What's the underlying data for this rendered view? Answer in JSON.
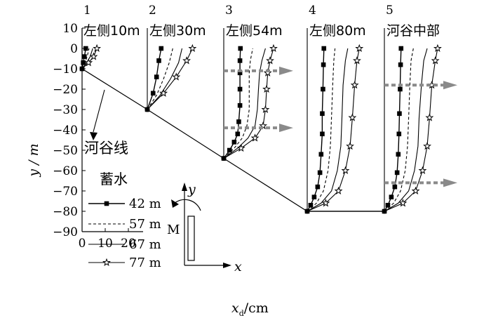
{
  "chart_data": {
    "type": "line",
    "ylabel": "y / m",
    "xlabel_main": "x",
    "xlabel_sub": "d",
    "xlabel_unit": "/cm",
    "ylim": [
      -90,
      10
    ],
    "yticks": [
      10,
      0,
      -10,
      -20,
      -30,
      -40,
      -50,
      -60,
      -70,
      -80,
      -90
    ],
    "xticks": [
      0,
      10,
      20
    ],
    "river_valley_label": "河谷线",
    "legend_title": "蓄水",
    "legend": [
      {
        "name": "42 m",
        "style": "solid",
        "marker": "square"
      },
      {
        "name": "57 m",
        "style": "dashed",
        "marker": "none"
      },
      {
        "name": "67 m",
        "style": "solid",
        "marker": "none"
      },
      {
        "name": "77 m",
        "style": "solid",
        "marker": "star"
      }
    ],
    "axis_inset": {
      "y": "y",
      "x": "x",
      "moment": "M"
    },
    "panels": [
      {
        "num": "1",
        "title": "左侧10m",
        "base_y": -10,
        "series": [
          {
            "name": "42 m",
            "points": [
              [
                0,
                -10
              ],
              [
                0.5,
                -7
              ],
              [
                1,
                -4
              ],
              [
                1.6,
                0
              ]
            ]
          },
          {
            "name": "57 m",
            "points": [
              [
                0,
                -10
              ],
              [
                1.2,
                -7
              ],
              [
                2.2,
                -4
              ],
              [
                3,
                0
              ]
            ]
          },
          {
            "name": "67 m",
            "points": [
              [
                0,
                -10
              ],
              [
                2,
                -7
              ],
              [
                3.5,
                -4
              ],
              [
                4.6,
                0
              ]
            ]
          },
          {
            "name": "77 m",
            "points": [
              [
                0,
                -10
              ],
              [
                2.8,
                -7
              ],
              [
                5,
                -4
              ],
              [
                6.4,
                0
              ]
            ]
          }
        ]
      },
      {
        "num": "2",
        "title": "左侧30m",
        "base_y": -30,
        "series": [
          {
            "name": "42 m",
            "points": [
              [
                0,
                -30
              ],
              [
                2.5,
                -22
              ],
              [
                4,
                -14
              ],
              [
                5,
                -6
              ],
              [
                6,
                0
              ]
            ]
          },
          {
            "name": "57 m",
            "points": [
              [
                0,
                -30
              ],
              [
                4,
                -23
              ],
              [
                7,
                -15
              ],
              [
                9.5,
                -7
              ],
              [
                11,
                0
              ]
            ]
          },
          {
            "name": "67 m",
            "points": [
              [
                0,
                -30
              ],
              [
                5.5,
                -23
              ],
              [
                10,
                -15
              ],
              [
                13.5,
                -7
              ],
              [
                15,
                0
              ]
            ]
          },
          {
            "name": "77 m",
            "points": [
              [
                0,
                -30
              ],
              [
                7,
                -22
              ],
              [
                12.5,
                -14
              ],
              [
                17,
                -6
              ],
              [
                19.5,
                0
              ]
            ]
          }
        ]
      },
      {
        "num": "3",
        "title": "左侧54m",
        "base_y": -54,
        "series": [
          {
            "name": "42 m",
            "points": [
              [
                0,
                -54
              ],
              [
                2.5,
                -50
              ],
              [
                4.5,
                -46
              ],
              [
                6,
                -42
              ],
              [
                6.5,
                -36
              ],
              [
                7,
                -28
              ],
              [
                7,
                -20
              ],
              [
                7,
                -12
              ],
              [
                7,
                -6
              ],
              [
                7.2,
                0
              ]
            ]
          },
          {
            "name": "57 m",
            "points": [
              [
                0,
                -54
              ],
              [
                4.5,
                -49
              ],
              [
                8,
                -44
              ],
              [
                10,
                -38
              ],
              [
                11,
                -30
              ],
              [
                11,
                -20
              ],
              [
                11,
                -12
              ],
              [
                11.5,
                -6
              ],
              [
                12.5,
                0
              ]
            ]
          },
          {
            "name": "67 m",
            "points": [
              [
                0,
                -54
              ],
              [
                6,
                -49
              ],
              [
                10.5,
                -44
              ],
              [
                13.5,
                -38
              ],
              [
                14.5,
                -30
              ],
              [
                15,
                -20
              ],
              [
                15.5,
                -12
              ],
              [
                16.5,
                -6
              ],
              [
                18,
                0
              ]
            ]
          },
          {
            "name": "77 m",
            "points": [
              [
                0,
                -54
              ],
              [
                7.5,
                -49
              ],
              [
                13.5,
                -44
              ],
              [
                17,
                -38
              ],
              [
                18,
                -30
              ],
              [
                18.5,
                -20
              ],
              [
                19,
                -12
              ],
              [
                20,
                -6
              ],
              [
                21.5,
                0
              ]
            ]
          }
        ]
      },
      {
        "num": "4",
        "title": "左侧80m",
        "base_y": -80,
        "series": [
          {
            "name": "42 m",
            "points": [
              [
                0,
                -80
              ],
              [
                1.5,
                -77
              ],
              [
                3,
                -73
              ],
              [
                4.5,
                -68
              ],
              [
                5.5,
                -61
              ],
              [
                6,
                -52
              ],
              [
                6.5,
                -42
              ],
              [
                6.5,
                -32
              ],
              [
                6.8,
                -20
              ],
              [
                7,
                -8
              ],
              [
                7.2,
                0
              ]
            ]
          },
          {
            "name": "57 m",
            "points": [
              [
                0,
                -80
              ],
              [
                4,
                -76
              ],
              [
                7,
                -70
              ],
              [
                9,
                -60
              ],
              [
                10,
                -48
              ],
              [
                10.5,
                -34
              ],
              [
                11,
                -18
              ],
              [
                11.5,
                -6
              ],
              [
                12,
                0
              ]
            ]
          },
          {
            "name": "67 m",
            "points": [
              [
                0,
                -80
              ],
              [
                6,
                -76
              ],
              [
                10.5,
                -70
              ],
              [
                13,
                -60
              ],
              [
                14.5,
                -48
              ],
              [
                15,
                -34
              ],
              [
                15.5,
                -18
              ],
              [
                16.5,
                -6
              ],
              [
                17.5,
                0
              ]
            ]
          },
          {
            "name": "77 m",
            "points": [
              [
                0,
                -80
              ],
              [
                8,
                -76
              ],
              [
                13.5,
                -70
              ],
              [
                16.5,
                -60
              ],
              [
                18.5,
                -48
              ],
              [
                19.5,
                -34
              ],
              [
                20.5,
                -18
              ],
              [
                21.5,
                -6
              ],
              [
                22.5,
                0
              ]
            ]
          }
        ]
      },
      {
        "num": "5",
        "title": "河谷中部",
        "base_y": -80,
        "series": [
          {
            "name": "42 m",
            "points": [
              [
                0,
                -80
              ],
              [
                1.5,
                -77
              ],
              [
                3,
                -73
              ],
              [
                4.5,
                -68
              ],
              [
                5.5,
                -61
              ],
              [
                6,
                -52
              ],
              [
                6.3,
                -42
              ],
              [
                6.5,
                -32
              ],
              [
                6.8,
                -20
              ],
              [
                7,
                -8
              ],
              [
                7.2,
                0
              ]
            ]
          },
          {
            "name": "57 m",
            "points": [
              [
                0,
                -80
              ],
              [
                4,
                -76
              ],
              [
                7,
                -70
              ],
              [
                9,
                -60
              ],
              [
                10,
                -48
              ],
              [
                10.5,
                -34
              ],
              [
                11,
                -18
              ],
              [
                11.5,
                -6
              ],
              [
                12.5,
                0
              ]
            ]
          },
          {
            "name": "67 m",
            "points": [
              [
                0,
                -80
              ],
              [
                6,
                -76
              ],
              [
                10.5,
                -70
              ],
              [
                13,
                -60
              ],
              [
                14.5,
                -48
              ],
              [
                15,
                -34
              ],
              [
                16,
                -18
              ],
              [
                17,
                -6
              ],
              [
                18.5,
                0
              ]
            ]
          },
          {
            "name": "77 m",
            "points": [
              [
                0,
                -80
              ],
              [
                8,
                -76
              ],
              [
                13.5,
                -70
              ],
              [
                16.5,
                -60
              ],
              [
                18.5,
                -48
              ],
              [
                19.5,
                -34
              ],
              [
                20.5,
                -18
              ],
              [
                22,
                -6
              ],
              [
                23,
                0
              ]
            ]
          }
        ]
      }
    ],
    "gray_arrows": [
      {
        "panel": 3,
        "y": -11
      },
      {
        "panel": 3,
        "y": -39
      },
      {
        "panel": 5,
        "y": -18
      },
      {
        "panel": 5,
        "y": -66
      }
    ]
  }
}
